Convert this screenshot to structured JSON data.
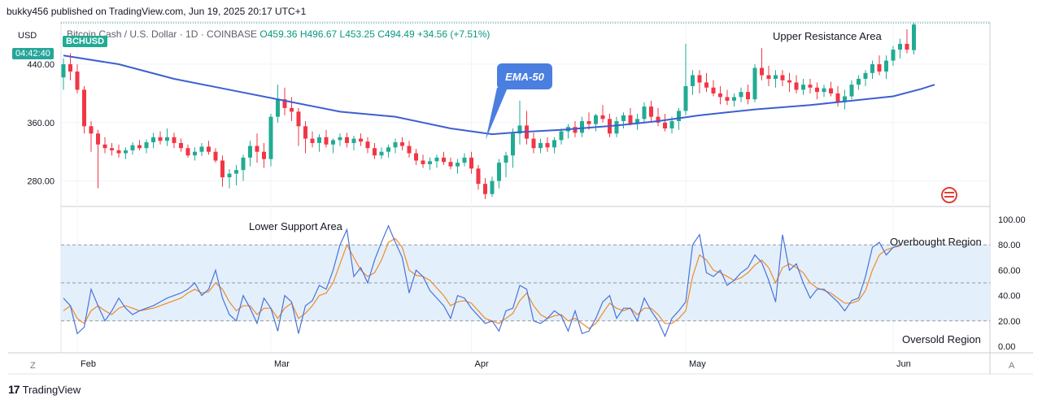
{
  "header": {
    "published": "bukky456 published on TradingView.com, Jun 19, 2025 20:17 UTC+1",
    "currency": "USD",
    "symbol_tag": "BCHUSD",
    "countdown": "04:42:40",
    "legend_title": "Bitcoin Cash / U.S. Dollar · 1D · COINBASE",
    "ohlc": {
      "o": "O459.36",
      "h": "H496.67",
      "l": "L453.25",
      "c": "C494.49",
      "chg": "+34.56 (+7.51%)"
    }
  },
  "footer": {
    "brand": "TradingView",
    "z_label": "Z",
    "a_label": "A"
  },
  "colors": {
    "up": "#22ab94",
    "down": "#f23645",
    "ema": "#3d5fd1",
    "k_line": "#4a72d8",
    "d_line": "#f08a2a",
    "band": "#e3f0fb"
  },
  "chart_data": [
    {
      "type": "candlestick",
      "title": "Bitcoin Cash / U.S. Dollar · 1D · COINBASE",
      "ylim": [
        245,
        498
      ],
      "yticks": [
        280,
        360,
        440
      ],
      "ytick_labels": [
        "280.00",
        "360.00",
        "440.00"
      ],
      "xtick_labels": [
        "Feb",
        "Mar",
        "Apr",
        "May",
        "Jun"
      ],
      "xtick_index": [
        2,
        30,
        59,
        90,
        120
      ],
      "grid": true,
      "annotations": [
        "Upper Resistance Area",
        "EMA-50"
      ],
      "resistance_level": 496.67,
      "ohlc": [
        [
          422,
          448,
          405,
          440
        ],
        [
          440,
          455,
          418,
          430
        ],
        [
          430,
          440,
          400,
          405
        ],
        [
          405,
          410,
          345,
          355
        ],
        [
          355,
          362,
          320,
          345
        ],
        [
          345,
          350,
          270,
          330
        ],
        [
          330,
          340,
          318,
          325
        ],
        [
          325,
          332,
          315,
          322
        ],
        [
          322,
          330,
          312,
          318
        ],
        [
          318,
          326,
          310,
          322
        ],
        [
          322,
          333,
          316,
          329
        ],
        [
          329,
          336,
          322,
          325
        ],
        [
          325,
          337,
          318,
          333
        ],
        [
          333,
          346,
          325,
          340
        ],
        [
          340,
          348,
          330,
          335
        ],
        [
          335,
          352,
          328,
          340
        ],
        [
          340,
          346,
          325,
          332
        ],
        [
          332,
          338,
          320,
          325
        ],
        [
          325,
          330,
          312,
          315
        ],
        [
          315,
          326,
          308,
          320
        ],
        [
          320,
          332,
          314,
          327
        ],
        [
          327,
          335,
          316,
          320
        ],
        [
          320,
          325,
          305,
          308
        ],
        [
          308,
          315,
          272,
          285
        ],
        [
          285,
          296,
          270,
          290
        ],
        [
          290,
          302,
          274,
          295
        ],
        [
          295,
          316,
          280,
          312
        ],
        [
          312,
          335,
          300,
          328
        ],
        [
          328,
          345,
          305,
          320
        ],
        [
          320,
          332,
          298,
          310
        ],
        [
          310,
          372,
          300,
          368
        ],
        [
          368,
          412,
          360,
          392
        ],
        [
          392,
          408,
          370,
          380
        ],
        [
          380,
          395,
          362,
          375
        ],
        [
          375,
          380,
          328,
          355
        ],
        [
          355,
          362,
          318,
          338
        ],
        [
          338,
          348,
          326,
          332
        ],
        [
          332,
          344,
          320,
          340
        ],
        [
          340,
          350,
          326,
          330
        ],
        [
          330,
          338,
          318,
          336
        ],
        [
          336,
          345,
          328,
          340
        ],
        [
          340,
          346,
          326,
          332
        ],
        [
          332,
          342,
          322,
          338
        ],
        [
          338,
          345,
          328,
          334
        ],
        [
          334,
          340,
          318,
          325
        ],
        [
          325,
          332,
          310,
          315
        ],
        [
          315,
          326,
          310,
          320
        ],
        [
          320,
          330,
          312,
          326
        ],
        [
          326,
          338,
          318,
          333
        ],
        [
          333,
          340,
          322,
          328
        ],
        [
          328,
          335,
          312,
          318
        ],
        [
          318,
          324,
          302,
          308
        ],
        [
          308,
          316,
          298,
          303
        ],
        [
          303,
          312,
          295,
          307
        ],
        [
          307,
          316,
          298,
          312
        ],
        [
          312,
          320,
          302,
          306
        ],
        [
          306,
          312,
          296,
          300
        ],
        [
          300,
          310,
          290,
          305
        ],
        [
          305,
          318,
          300,
          312
        ],
        [
          312,
          320,
          290,
          297
        ],
        [
          297,
          302,
          268,
          276
        ],
        [
          276,
          284,
          255,
          262
        ],
        [
          262,
          286,
          258,
          280
        ],
        [
          280,
          310,
          270,
          305
        ],
        [
          305,
          320,
          285,
          315
        ],
        [
          315,
          352,
          298,
          345
        ],
        [
          345,
          390,
          330,
          356
        ],
        [
          356,
          376,
          330,
          338
        ],
        [
          338,
          346,
          318,
          325
        ],
        [
          325,
          338,
          318,
          332
        ],
        [
          332,
          340,
          320,
          326
        ],
        [
          326,
          340,
          318,
          336
        ],
        [
          336,
          352,
          330,
          348
        ],
        [
          348,
          358,
          338,
          354
        ],
        [
          354,
          362,
          340,
          346
        ],
        [
          346,
          368,
          340,
          362
        ],
        [
          362,
          374,
          350,
          358
        ],
        [
          358,
          372,
          348,
          370
        ],
        [
          370,
          384,
          360,
          365
        ],
        [
          365,
          372,
          340,
          345
        ],
        [
          345,
          368,
          340,
          362
        ],
        [
          362,
          374,
          352,
          370
        ],
        [
          370,
          380,
          356,
          358
        ],
        [
          358,
          372,
          350,
          365
        ],
        [
          365,
          388,
          360,
          382
        ],
        [
          382,
          390,
          360,
          368
        ],
        [
          368,
          380,
          355,
          360
        ],
        [
          360,
          372,
          348,
          352
        ],
        [
          352,
          368,
          345,
          362
        ],
        [
          362,
          380,
          350,
          376
        ],
        [
          376,
          468,
          370,
          410
        ],
        [
          410,
          432,
          398,
          425
        ],
        [
          425,
          432,
          400,
          415
        ],
        [
          415,
          428,
          402,
          408
        ],
        [
          408,
          418,
          396,
          400
        ],
        [
          400,
          410,
          385,
          395
        ],
        [
          395,
          405,
          384,
          390
        ],
        [
          390,
          400,
          382,
          395
        ],
        [
          395,
          408,
          388,
          402
        ],
        [
          402,
          412,
          385,
          392
        ],
        [
          392,
          440,
          388,
          435
        ],
        [
          435,
          462,
          418,
          425
        ],
        [
          425,
          438,
          410,
          420
        ],
        [
          420,
          432,
          408,
          425
        ],
        [
          425,
          432,
          410,
          418
        ],
        [
          418,
          428,
          402,
          415
        ],
        [
          415,
          425,
          400,
          405
        ],
        [
          405,
          420,
          398,
          412
        ],
        [
          412,
          420,
          400,
          408
        ],
        [
          408,
          415,
          392,
          402
        ],
        [
          402,
          412,
          395,
          407
        ],
        [
          407,
          416,
          396,
          400
        ],
        [
          400,
          410,
          382,
          388
        ],
        [
          388,
          405,
          378,
          396
        ],
        [
          396,
          418,
          392,
          412
        ],
        [
          412,
          425,
          405,
          420
        ],
        [
          420,
          432,
          410,
          428
        ],
        [
          428,
          445,
          420,
          440
        ],
        [
          440,
          452,
          425,
          430
        ],
        [
          430,
          452,
          420,
          445
        ],
        [
          445,
          465,
          438,
          460
        ],
        [
          460,
          475,
          448,
          468
        ],
        [
          468,
          488,
          455,
          460
        ],
        [
          459.36,
          496.67,
          453.25,
          494.49
        ]
      ],
      "ema50": [
        [
          0,
          452
        ],
        [
          8,
          440
        ],
        [
          16,
          420
        ],
        [
          24,
          405
        ],
        [
          32,
          390
        ],
        [
          40,
          375
        ],
        [
          48,
          368
        ],
        [
          56,
          352
        ],
        [
          62,
          344
        ],
        [
          66,
          347
        ],
        [
          72,
          350
        ],
        [
          80,
          356
        ],
        [
          86,
          362
        ],
        [
          92,
          370
        ],
        [
          100,
          378
        ],
        [
          108,
          384
        ],
        [
          114,
          390
        ],
        [
          120,
          396
        ],
        [
          124,
          406
        ],
        [
          126,
          412
        ]
      ]
    },
    {
      "type": "line",
      "ylim": [
        0,
        100
      ],
      "yticks": [
        0,
        20,
        40,
        60,
        80,
        100
      ],
      "ytick_labels": [
        "0.00",
        "20.00",
        "40.00",
        "60.00",
        "80.00",
        "100.00"
      ],
      "overbought": 80,
      "middle": 50,
      "oversold": 20,
      "annotations": [
        "Lower Support Area",
        "Overbought Region",
        "Oversold Region"
      ],
      "series": [
        {
          "values": [
            38,
            32,
            10,
            15,
            45,
            32,
            20,
            28,
            38,
            30,
            25,
            28,
            30,
            32,
            35,
            38,
            40,
            42,
            45,
            50,
            40,
            45,
            60,
            38,
            25,
            20,
            40,
            30,
            18,
            38,
            30,
            12,
            40,
            35,
            10,
            32,
            36,
            48,
            45,
            60,
            80,
            92,
            55,
            62,
            50,
            68,
            82,
            95,
            82,
            70,
            42,
            60,
            55,
            44,
            38,
            32,
            22,
            40,
            38,
            30,
            24,
            18,
            20,
            12,
            28,
            30,
            48,
            45,
            20,
            18,
            22,
            28,
            24,
            12,
            28,
            10,
            12,
            22,
            35,
            40,
            22,
            30,
            30,
            20,
            38,
            28,
            20,
            8,
            22,
            28,
            35,
            80,
            88,
            58,
            55,
            60,
            48,
            52,
            58,
            62,
            72,
            66,
            52,
            35,
            88,
            60,
            65,
            50,
            38,
            45,
            45,
            40,
            35,
            28,
            36,
            38,
            55,
            78,
            82,
            72,
            78,
            80
          ]
        },
        {
          "values": [
            28,
            32,
            22,
            18,
            28,
            32,
            28,
            25,
            30,
            32,
            30,
            28,
            29,
            30,
            32,
            34,
            36,
            38,
            42,
            45,
            42,
            43,
            50,
            45,
            35,
            28,
            32,
            32,
            25,
            30,
            30,
            22,
            30,
            34,
            22,
            26,
            32,
            40,
            42,
            50,
            65,
            80,
            70,
            60,
            55,
            58,
            68,
            82,
            85,
            78,
            60,
            56,
            55,
            52,
            46,
            40,
            32,
            35,
            36,
            34,
            28,
            22,
            20,
            18,
            22,
            26,
            36,
            42,
            32,
            25,
            22,
            24,
            25,
            20,
            22,
            18,
            14,
            18,
            26,
            34,
            30,
            28,
            30,
            25,
            30,
            30,
            25,
            18,
            18,
            22,
            28,
            55,
            72,
            68,
            60,
            58,
            55,
            52,
            54,
            58,
            64,
            68,
            62,
            50,
            62,
            65,
            62,
            58,
            50,
            46,
            44,
            42,
            38,
            34,
            34,
            36,
            44,
            60,
            72,
            76,
            78,
            79
          ]
        }
      ]
    }
  ]
}
